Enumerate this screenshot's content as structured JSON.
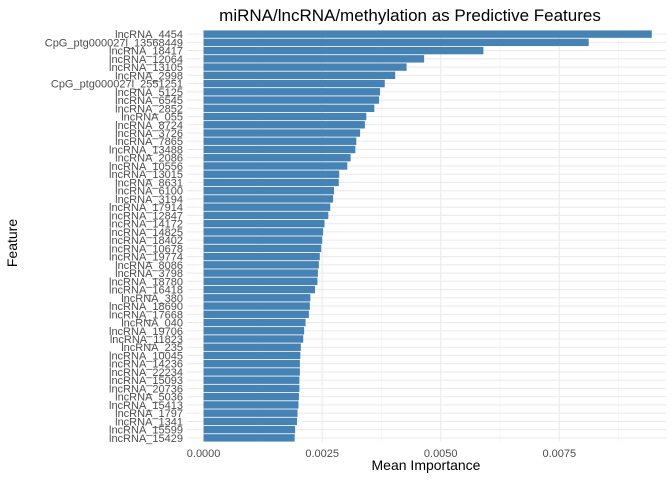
{
  "chart_data": {
    "type": "bar",
    "orientation": "horizontal",
    "title": "miRNA/lncRNA/methylation as Predictive Features",
    "xlabel": "Mean Importance",
    "ylabel": "Feature",
    "xlim": [
      -0.00035,
      0.00975
    ],
    "x_ticks": [
      0.0,
      0.0025,
      0.005,
      0.0075
    ],
    "x_tick_labels": [
      "0.0000",
      "0.0025",
      "0.0050",
      "0.0075"
    ],
    "grid": true,
    "bar_color": "#4682B4",
    "categories": [
      "lncRNA_4454",
      "CpG_ptg000027l_13568449",
      "lncRNA_18417",
      "lncRNA_12064",
      "lncRNA_13105",
      "lncRNA_2998",
      "CpG_ptg000027l_2551251",
      "lncRNA_5125",
      "lncRNA_6545",
      "lncRNA_2852",
      "lncRNA_055",
      "lncRNA_8724",
      "lncRNA_3726",
      "lncRNA_7865",
      "lncRNA_13488",
      "lncRNA_2086",
      "lncRNA_10556",
      "lncRNA_13015",
      "lncRNA_8631",
      "lncRNA_6100",
      "lncRNA_3194",
      "lncRNA_17914",
      "lncRNA_12847",
      "lncRNA_14172",
      "lncRNA_14825",
      "lncRNA_18402",
      "lncRNA_10678",
      "lncRNA_19774",
      "lncRNA_8086",
      "lncRNA_3798",
      "lncRNA_18780",
      "lncRNA_16418",
      "lncRNA_380",
      "lncRNA_18690",
      "lncRNA_17668",
      "lncRNA_040",
      "lncRNA_19706",
      "lncRNA_11823",
      "lncRNA_235",
      "lncRNA_10045",
      "lncRNA_14236",
      "lncRNA_22234",
      "lncRNA_15093",
      "lncRNA_20736",
      "lncRNA_5036",
      "lncRNA_15413",
      "lncRNA_1797",
      "lncRNA_1341",
      "lncRNA_15599",
      "lncRNA_15429"
    ],
    "values": [
      0.00945,
      0.00812,
      0.0059,
      0.00465,
      0.00428,
      0.00404,
      0.00382,
      0.00372,
      0.0037,
      0.0036,
      0.00343,
      0.0034,
      0.0033,
      0.00322,
      0.0032,
      0.0031,
      0.00303,
      0.00286,
      0.00285,
      0.00275,
      0.00273,
      0.00267,
      0.00263,
      0.00255,
      0.00252,
      0.0025,
      0.00248,
      0.00245,
      0.00243,
      0.00241,
      0.0024,
      0.00235,
      0.00225,
      0.00224,
      0.00222,
      0.00215,
      0.00212,
      0.0021,
      0.00205,
      0.00204,
      0.00203,
      0.00203,
      0.00202,
      0.00202,
      0.00201,
      0.002,
      0.00198,
      0.00197,
      0.00193,
      0.00192
    ]
  }
}
